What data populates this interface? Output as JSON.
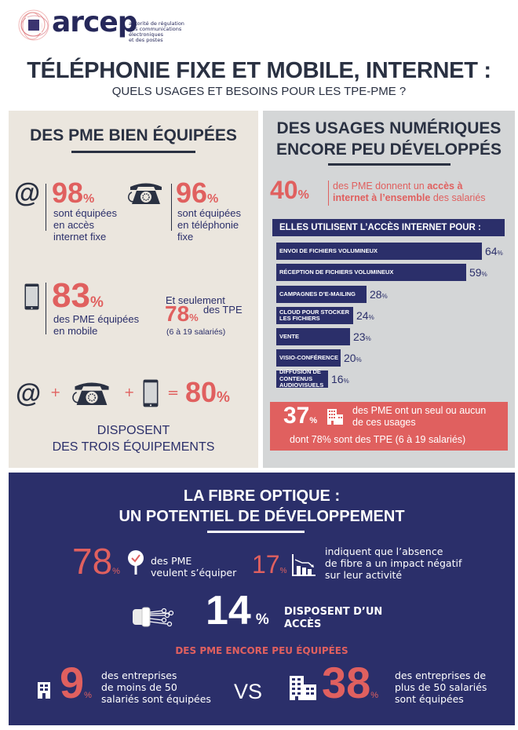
{
  "header": {
    "logo_word": "arcep",
    "logo_tagline": [
      "autorité de régulation",
      "des communications électroniques",
      "et des postes"
    ],
    "title": "TÉLÉPHONIE FIXE ET MOBILE, INTERNET :",
    "subtitle": "QUELS USAGES ET BESOINS POUR LES TPE-PME ?"
  },
  "colors": {
    "accent_red": "#e0605f",
    "navy": "#2b2f6a",
    "beige": "#ebe6de",
    "grey": "#d4d6d7"
  },
  "left_panel": {
    "title": "DES PME BIEN ÉQUIPÉES",
    "internet": {
      "icon": "at-sign-icon",
      "value": "98",
      "unit": "%",
      "lines": [
        "sont équipées",
        "en accès",
        "internet fixe"
      ]
    },
    "phone": {
      "icon": "rotary-phone-icon",
      "value": "96",
      "unit": "%",
      "lines": [
        "sont équipées",
        "en téléphonie",
        "fixe"
      ]
    },
    "mobile": {
      "icon": "smartphone-icon",
      "value": "83",
      "unit": "%",
      "lines": [
        "des PME équipées",
        "en mobile"
      ]
    },
    "tpe": {
      "prefix": "Et seulement",
      "value": "78",
      "unit": "%",
      "suffix": "des TPE",
      "note": "(6 à 19 salariés)"
    },
    "combo": {
      "plus": "+",
      "equals": "=",
      "value": "80",
      "unit": "%",
      "lines": [
        "DISPOSENT",
        "DES TROIS ÉQUIPEMENTS"
      ]
    }
  },
  "right_panel": {
    "title_lines": [
      "DES USAGES NUMÉRIQUES",
      "ENCORE PEU DÉVELOPPÉS"
    ],
    "stat": {
      "value": "40",
      "unit": "%",
      "line1_a": "des PME donnent un ",
      "line1_b": "accès à",
      "line2_a": "internet à l’ensemble",
      "line2_b": " des salariés"
    },
    "bars_header": "ELLES UTILISENT L’ACCÈS INTERNET POUR :",
    "bars": [
      {
        "label": "ENVOI DE FICHIERS VOLUMINEUX",
        "value": 64,
        "display": "64",
        "unit": "%"
      },
      {
        "label": "RÉCEPTION DE FICHIERS VOLUMINEUX",
        "value": 59,
        "display": "59",
        "unit": "%"
      },
      {
        "label": "CAMPAGNES D’E-MAILING",
        "value": 28,
        "display": "28",
        "unit": "%"
      },
      {
        "label": "CLOUD POUR STOCKER LES FICHIERS",
        "value": 24,
        "display": "24",
        "unit": "%"
      },
      {
        "label": "VENTE",
        "value": 23,
        "display": "23",
        "unit": "%"
      },
      {
        "label": "VISIO-CONFÉRENCE",
        "value": 20,
        "display": "20",
        "unit": "%"
      },
      {
        "label": "DIFFUSION DE CONTENUS AUDIOVISUELS",
        "value": 16,
        "display": "16",
        "unit": "%"
      }
    ],
    "red_box": {
      "value": "37",
      "unit": "%",
      "icon": "building-icon",
      "line1": "des PME ont un seul ou aucun",
      "line2": "de ces usages",
      "line3": "dont 78% sont des TPE (6 à 19 salariés)"
    }
  },
  "fibre": {
    "title_lines": [
      "LA FIBRE OPTIQUE :",
      "UN POTENTIEL DE DÉVELOPPEMENT"
    ],
    "want": {
      "value": "78",
      "unit": "%",
      "icon": "checkmark-pin-icon",
      "lines": [
        "des PME",
        "veulent s’équiper"
      ]
    },
    "impact": {
      "value": "17",
      "unit": "%",
      "icon": "declining-chart-icon",
      "lines": [
        "indiquent que l’absence",
        "de fibre a un impact négatif",
        "sur leur activité"
      ]
    },
    "access": {
      "value": "14",
      "unit": "%",
      "icon": "fiber-cable-icon",
      "lines": [
        "DISPOSENT D’UN",
        "ACCÈS"
      ]
    },
    "subhead": "DES PME ENCORE PEU ÉQUIPÉES",
    "small": {
      "value": "9",
      "unit": "%",
      "icon": "small-building-icon",
      "lines": [
        "des entreprises",
        "de moins de 50",
        "salariés sont équipées"
      ]
    },
    "vs": "VS",
    "large": {
      "value": "38",
      "unit": "%",
      "icon": "large-building-icon",
      "lines": [
        "des entreprises de",
        "plus de 50 salariés",
        "sont équipées"
      ]
    }
  }
}
